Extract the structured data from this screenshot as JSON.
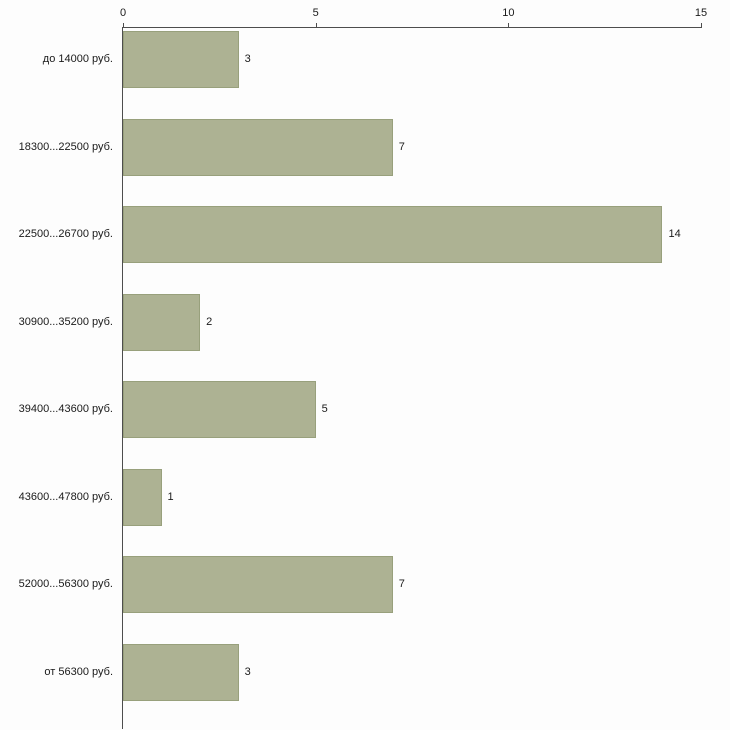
{
  "chart_data": {
    "type": "bar",
    "orientation": "horizontal",
    "title": "",
    "xlabel": "",
    "ylabel": "",
    "categories": [
      "до 14000 руб.",
      "18300...22500 руб.",
      "22500...26700 руб.",
      "30900...35200 руб.",
      "39400...43600 руб.",
      "43600...47800 руб.",
      "52000...56300 руб.",
      "от 56300 руб."
    ],
    "values": [
      3,
      7,
      14,
      2,
      5,
      1,
      7,
      3
    ],
    "value_labels": [
      "3",
      "7",
      "14",
      "2",
      "5",
      "1",
      "7",
      "3"
    ],
    "xlim": [
      0,
      15
    ],
    "x_ticks": [
      "0",
      "5",
      "10",
      "15"
    ],
    "grid": false,
    "legend": "none",
    "bar_color": "#adb293",
    "bar_border_color": "#98a07c",
    "axis_color": "#4d4d4d",
    "text_color": "#1a1a1a",
    "background_color": "#fdfdfd"
  }
}
